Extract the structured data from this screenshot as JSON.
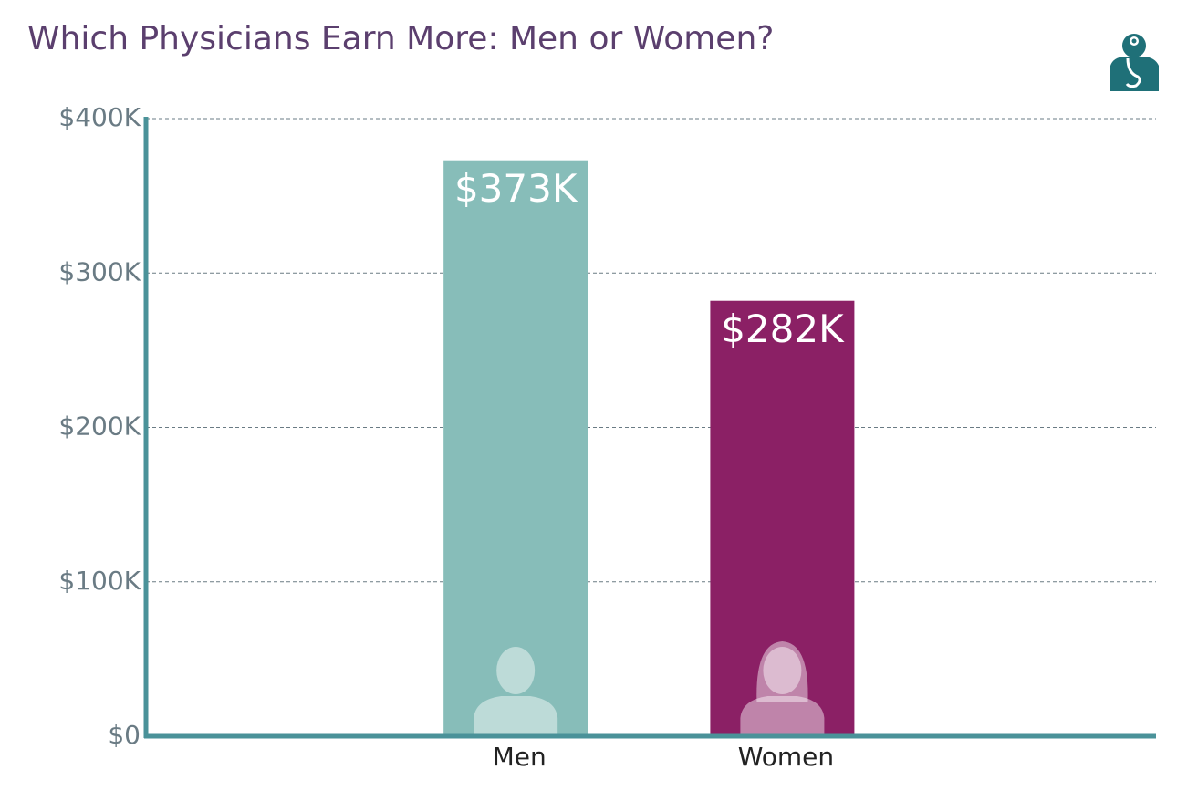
{
  "chart_data": {
    "type": "bar",
    "title": "Which Physicians Earn More: Men or Women?",
    "categories": [
      "Men",
      "Women"
    ],
    "values": [
      373000,
      282000
    ],
    "value_labels": [
      "$373K",
      "$282K"
    ],
    "colors": [
      "#87bdb9",
      "#8b2065"
    ],
    "ylim": [
      0,
      400000
    ],
    "yticks": [
      {
        "value": 0,
        "label": "$0"
      },
      {
        "value": 100000,
        "label": "$100K"
      },
      {
        "value": 200000,
        "label": "$200K"
      },
      {
        "value": 300000,
        "label": "$300K"
      },
      {
        "value": 400000,
        "label": "$400K"
      }
    ],
    "grid": true
  }
}
